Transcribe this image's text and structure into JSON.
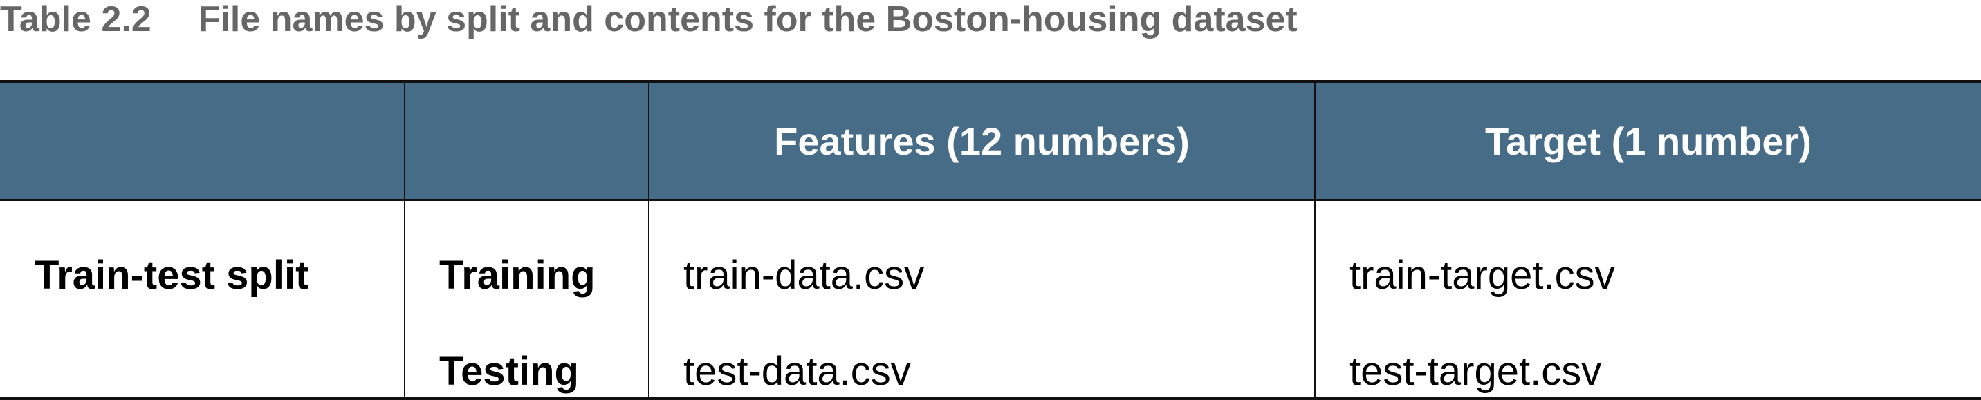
{
  "caption": {
    "number": "Table 2.2",
    "title": "File names by split and contents for the Boston-housing dataset"
  },
  "table": {
    "header": {
      "col1": "",
      "col2": "",
      "col3": "Features (12 numbers)",
      "col4": "Target (1 number)"
    },
    "group_label": "Train-test split",
    "rows": [
      {
        "label": "Training",
        "features": "train-data.csv",
        "target": "train-target.csv"
      },
      {
        "label": "Testing",
        "features": "test-data.csv",
        "target": "test-target.csv"
      }
    ]
  },
  "colors": {
    "header_background": "#476c88",
    "header_text": "#ffffff",
    "caption_text": "#666666",
    "rule": "#111111"
  }
}
